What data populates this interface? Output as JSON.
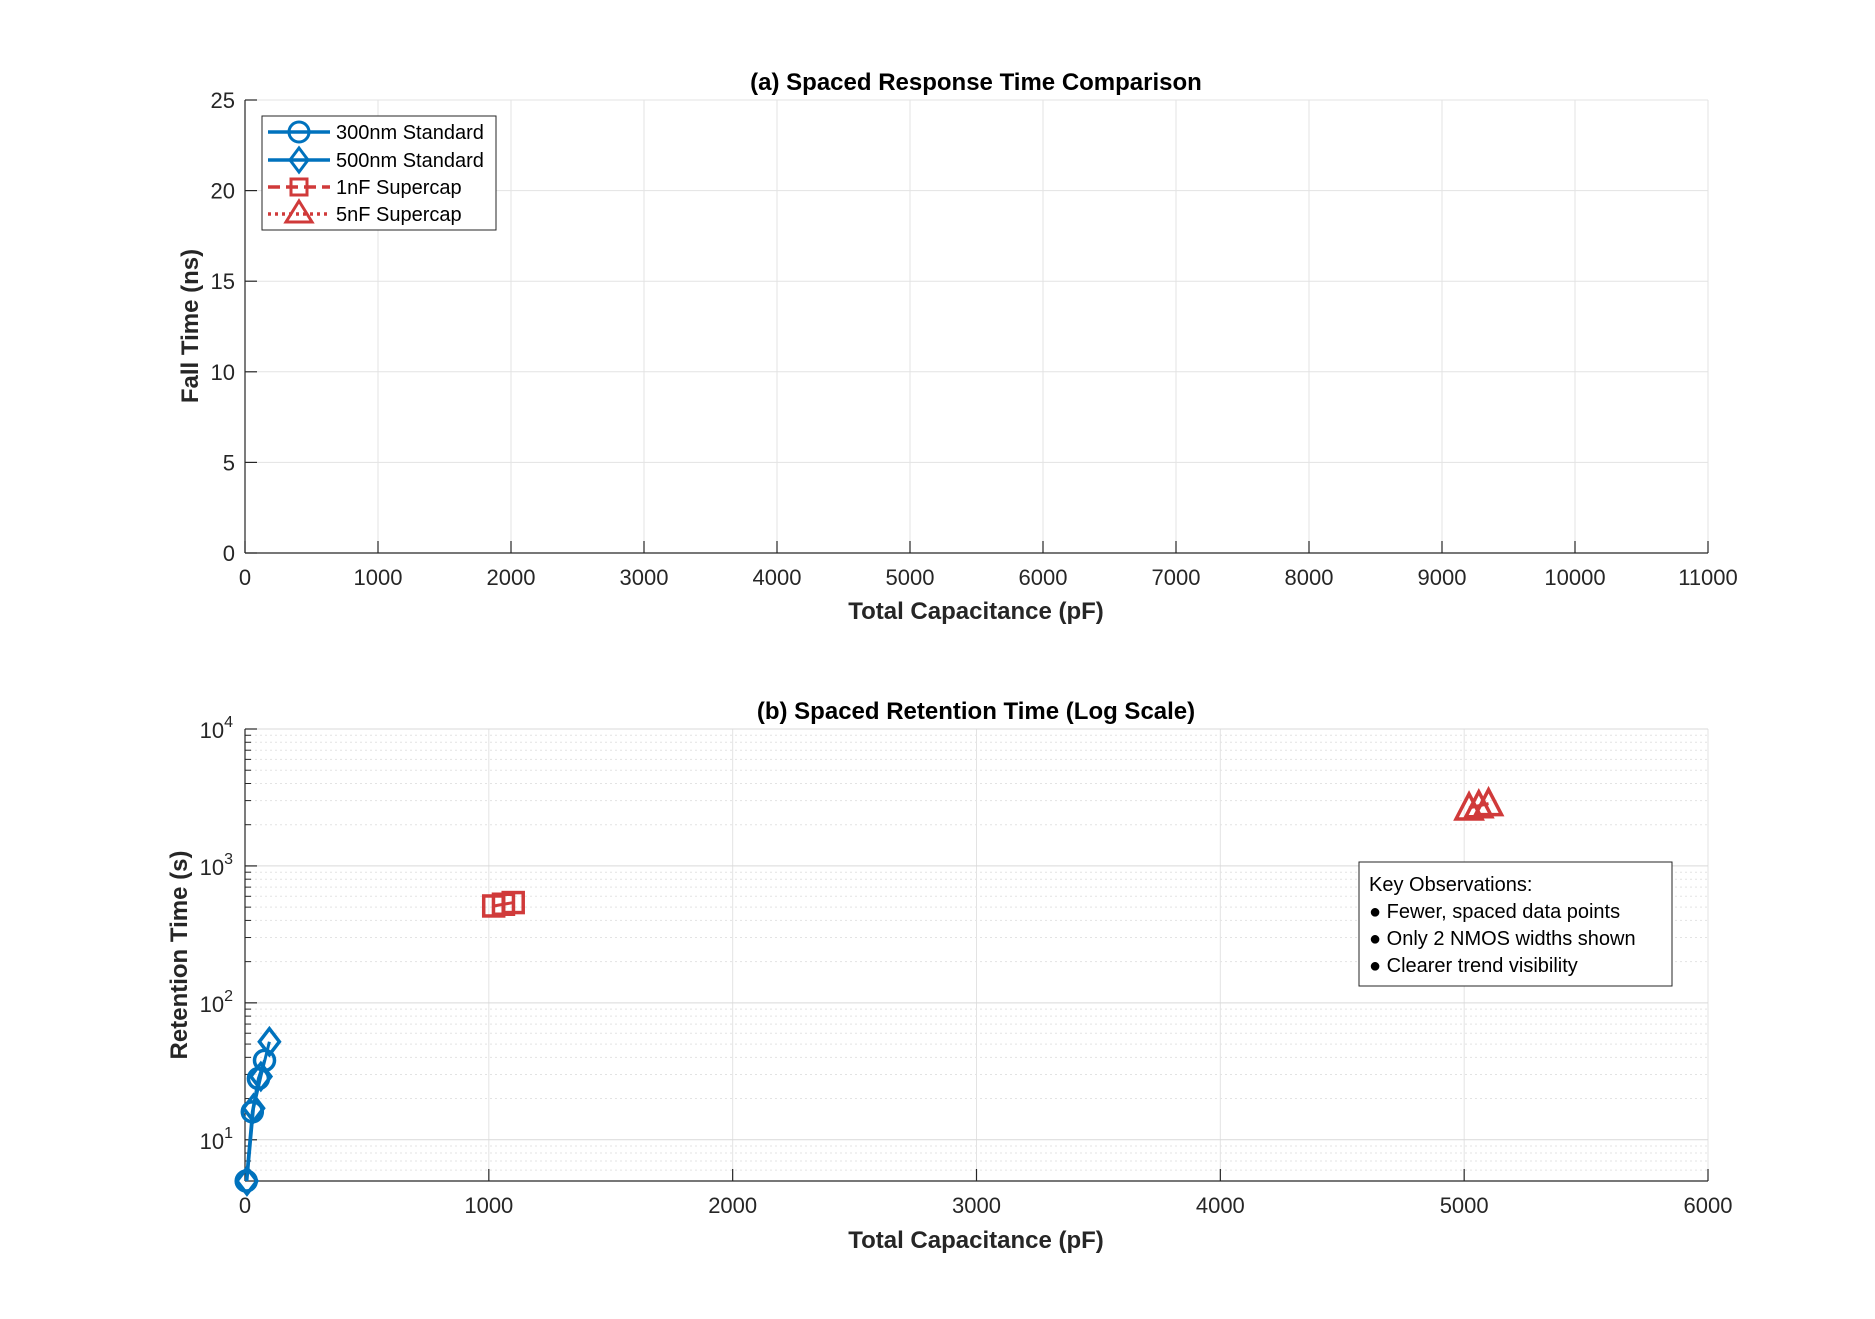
{
  "colors": {
    "blue": "#0072BD",
    "red": "#D03A3A"
  },
  "chart_data": [
    {
      "type": "line",
      "title": "(a) Spaced Response Time Comparison",
      "xlabel": "Total Capacitance (pF)",
      "ylabel": "Fall Time (ns)",
      "xlim": [
        0,
        11000
      ],
      "ylim": [
        0,
        25
      ],
      "xticks": [
        "0",
        "1000",
        "2000",
        "3000",
        "4000",
        "5000",
        "6000",
        "7000",
        "8000",
        "9000",
        "10000",
        "11000"
      ],
      "yticks": [
        "0",
        "5",
        "10",
        "15",
        "20",
        "25"
      ],
      "grid": true,
      "legend_position": "top-left",
      "series": [
        {
          "name": "300nm Standard",
          "color": "#0072BD",
          "marker": "circle",
          "line": "solid",
          "x": [],
          "y": []
        },
        {
          "name": "500nm Standard",
          "color": "#0072BD",
          "marker": "diamond",
          "line": "solid",
          "x": [],
          "y": []
        },
        {
          "name": "1nF Supercap",
          "color": "#D03A3A",
          "marker": "square",
          "line": "dashed",
          "x": [],
          "y": []
        },
        {
          "name": "5nF Supercap",
          "color": "#D03A3A",
          "marker": "triangle",
          "line": "dotted",
          "x": [],
          "y": []
        }
      ]
    },
    {
      "type": "scatter",
      "title": "(b) Spaced Retention Time (Log Scale)",
      "xlabel": "Total Capacitance (pF)",
      "ylabel": "Retention Time (s)",
      "xlim": [
        0,
        6000
      ],
      "ylim": [
        5,
        10000
      ],
      "yscale": "log",
      "xticks": [
        "0",
        "1000",
        "2000",
        "3000",
        "4000",
        "5000",
        "6000"
      ],
      "yticks": [
        {
          "base": "10",
          "exp": "1",
          "value": 10
        },
        {
          "base": "10",
          "exp": "2",
          "value": 100
        },
        {
          "base": "10",
          "exp": "3",
          "value": 1000
        },
        {
          "base": "10",
          "exp": "4",
          "value": 10000
        }
      ],
      "grid": true,
      "series": [
        {
          "name": "300nm Standard",
          "color": "#0072BD",
          "marker": "circle",
          "x": [
            5,
            30,
            55,
            80
          ],
          "y": [
            5,
            16,
            28,
            38
          ]
        },
        {
          "name": "500nm Standard",
          "color": "#0072BD",
          "marker": "diamond",
          "x": [
            8,
            35,
            65,
            100
          ],
          "y": [
            5,
            17,
            29,
            52
          ]
        },
        {
          "name": "1nF Supercap",
          "color": "#D03A3A",
          "marker": "square",
          "x": [
            1020,
            1060,
            1100
          ],
          "y": [
            510,
            525,
            540
          ]
        },
        {
          "name": "5nF Supercap",
          "color": "#D03A3A",
          "marker": "triangle",
          "x": [
            5020,
            5060,
            5100
          ],
          "y": [
            2650,
            2750,
            2850
          ]
        }
      ],
      "annotation": {
        "title": "Key Observations:",
        "items": [
          "● Fewer, spaced data points",
          "● Only 2 NMOS widths shown",
          "● Clearer trend visibility"
        ]
      }
    }
  ]
}
